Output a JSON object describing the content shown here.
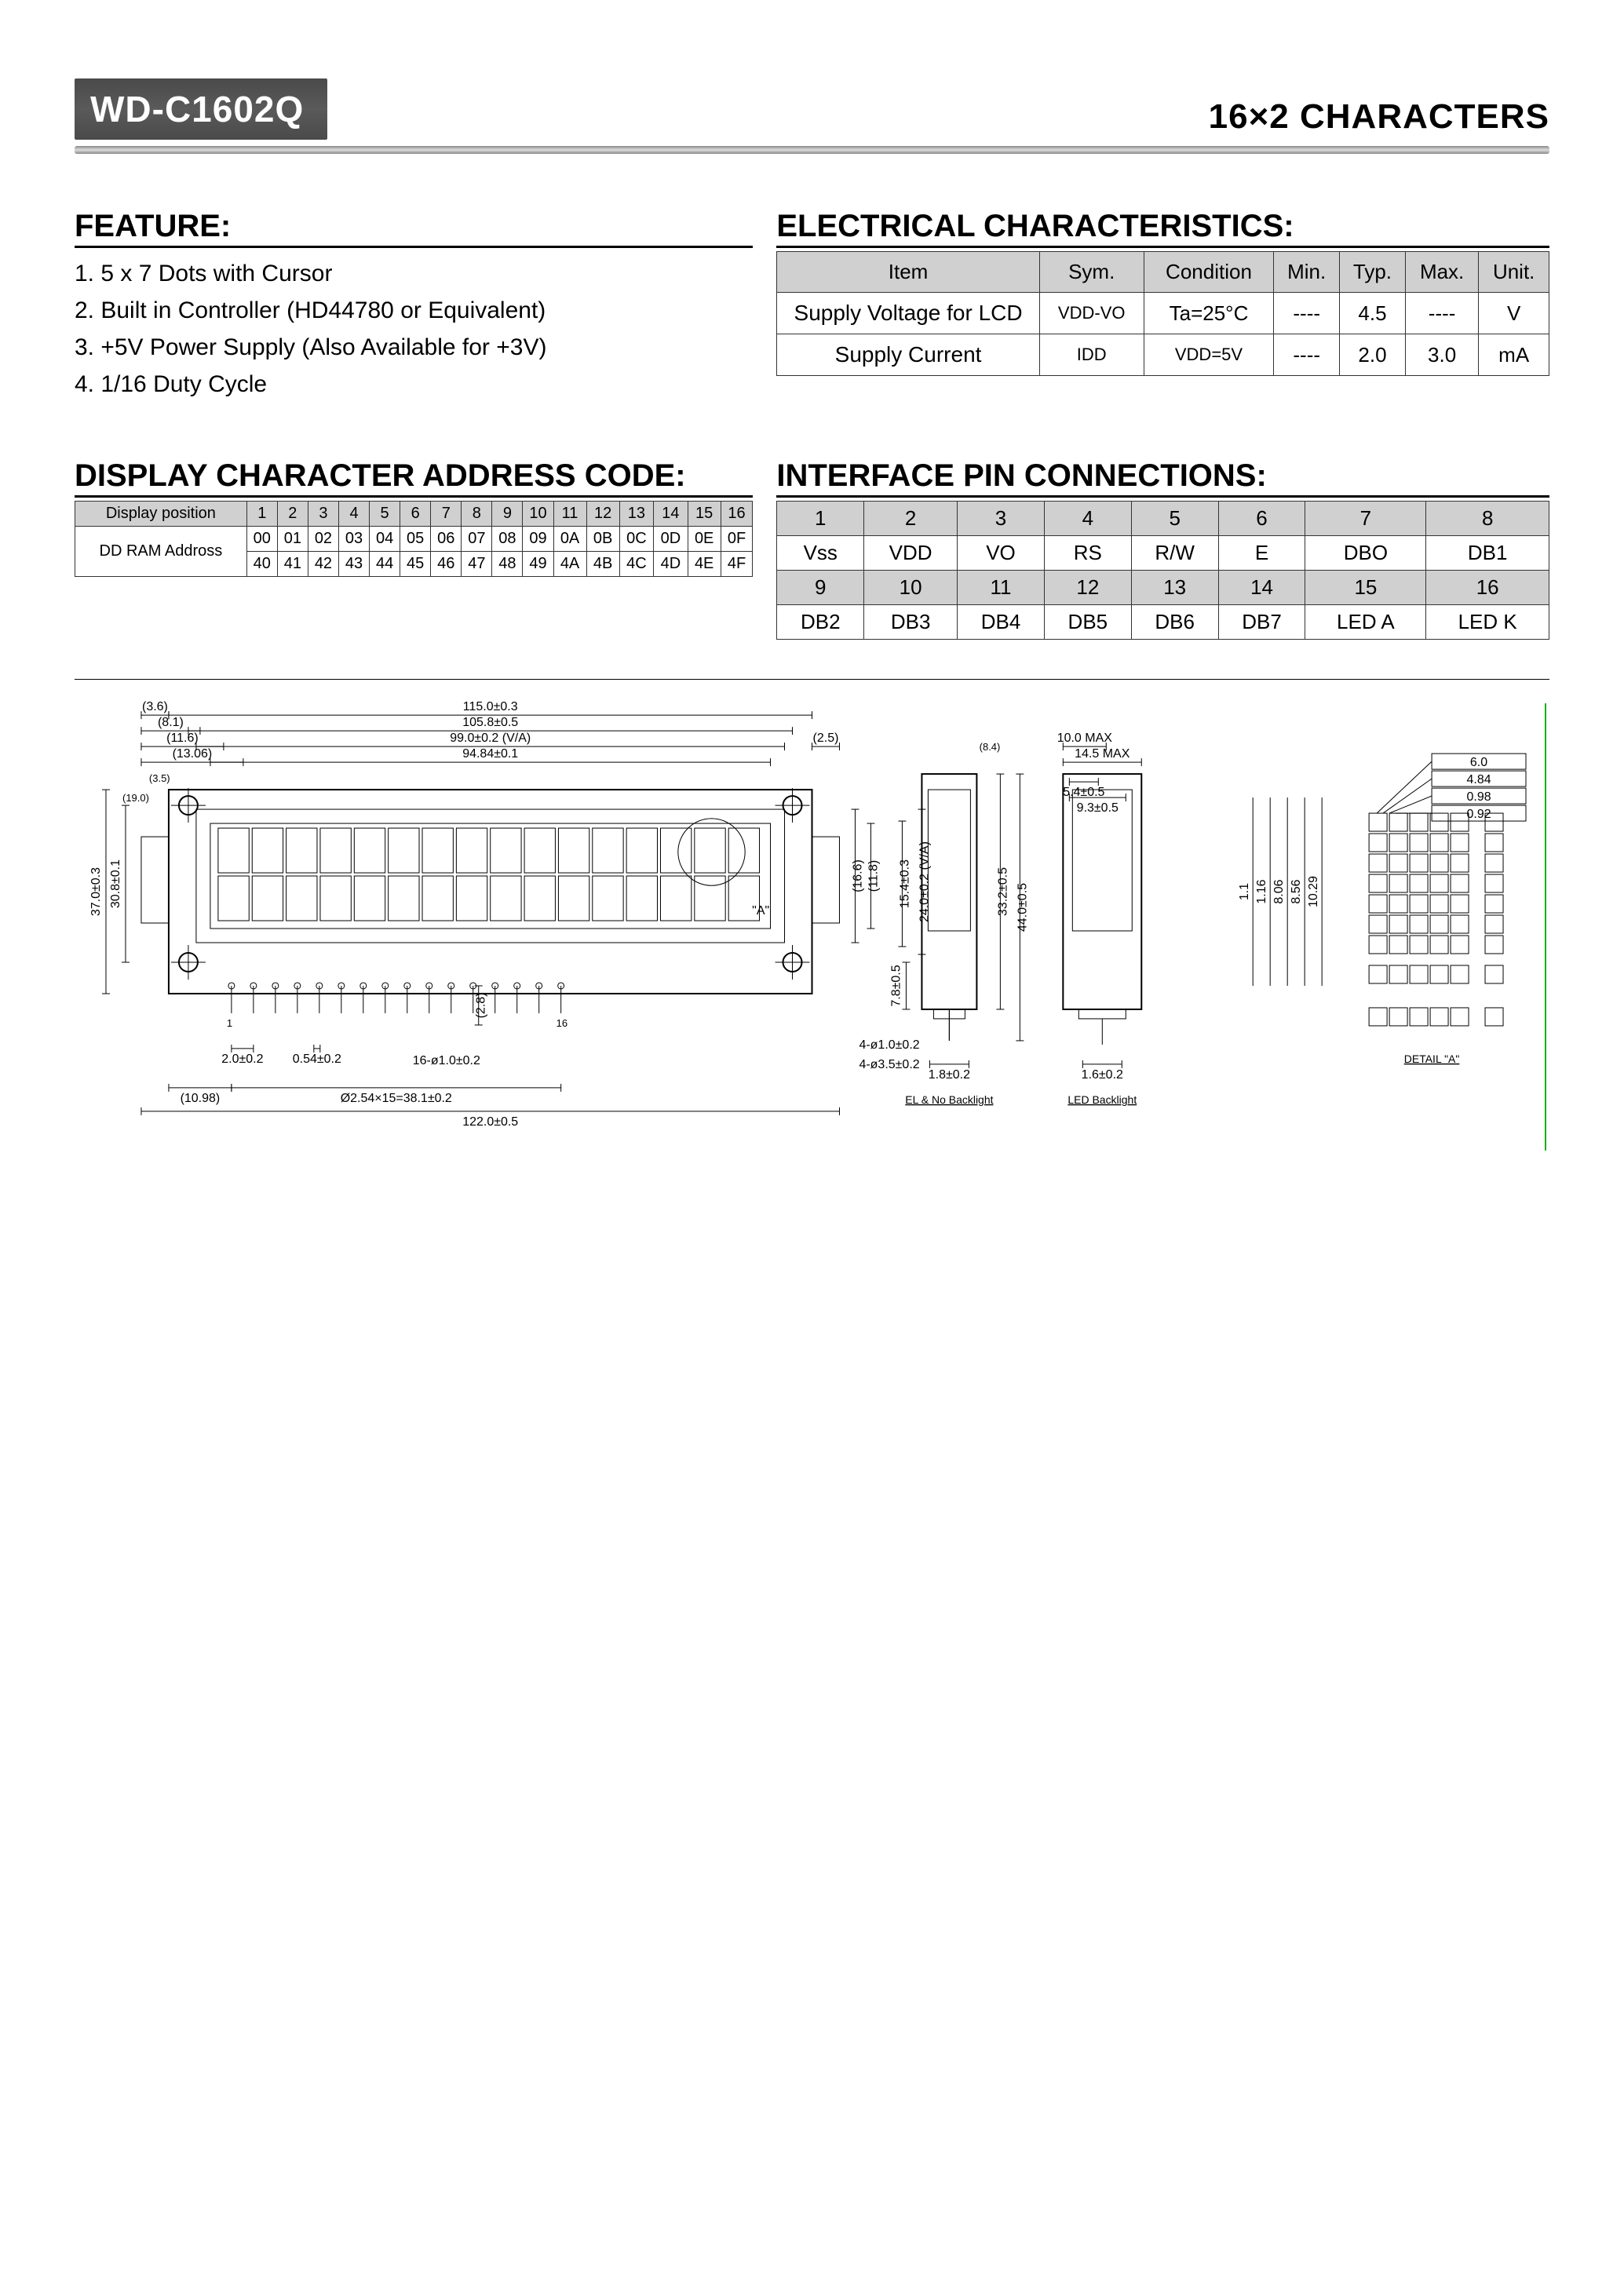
{
  "header": {
    "part_number": "WD-C1602Q",
    "right_label": "16×2  CHARACTERS"
  },
  "features": {
    "title": "FEATURE:",
    "items": [
      "1. 5 x 7 Dots with Cursor",
      "2. Built in Controller (HD44780 or Equivalent)",
      "3. +5V Power Supply (Also Available for +3V)",
      "4. 1/16 Duty Cycle"
    ]
  },
  "electrical": {
    "title": "ELECTRICAL CHARACTERISTICS:",
    "columns": [
      "Item",
      "Sym.",
      "Condition",
      "Min.",
      "Typ.",
      "Max.",
      "Unit."
    ],
    "rows": [
      {
        "item": "Supply Voltage for LCD",
        "sym": "VDD-VO",
        "cond": "Ta=25°C",
        "min": "----",
        "typ": "4.5",
        "max": "----",
        "unit": "V"
      },
      {
        "item": "Supply Current",
        "sym": "IDD",
        "cond": "VDD=5V",
        "min": "----",
        "typ": "2.0",
        "max": "3.0",
        "unit": "mA"
      }
    ]
  },
  "address": {
    "title": "DISPLAY CHARACTER ADDRESS CODE:",
    "position_label": "Display position",
    "ram_label": "DD RAM Addross",
    "positions": [
      "1",
      "2",
      "3",
      "4",
      "5",
      "6",
      "7",
      "8",
      "9",
      "10",
      "11",
      "12",
      "13",
      "14",
      "15",
      "16"
    ],
    "row1": [
      "00",
      "01",
      "02",
      "03",
      "04",
      "05",
      "06",
      "07",
      "08",
      "09",
      "0A",
      "0B",
      "0C",
      "0D",
      "0E",
      "0F"
    ],
    "row2": [
      "40",
      "41",
      "42",
      "43",
      "44",
      "45",
      "46",
      "47",
      "48",
      "49",
      "4A",
      "4B",
      "4C",
      "4D",
      "4E",
      "4F"
    ]
  },
  "pins": {
    "title": "INTERFACE PIN CONNECTIONS:",
    "nums1": [
      "1",
      "2",
      "3",
      "4",
      "5",
      "6",
      "7",
      "8"
    ],
    "labels1": [
      "Vss",
      "VDD",
      "VO",
      "RS",
      "R/W",
      "E",
      "DBO",
      "DB1"
    ],
    "nums2": [
      "9",
      "10",
      "11",
      "12",
      "13",
      "14",
      "15",
      "16"
    ],
    "labels2": [
      "DB2",
      "DB3",
      "DB4",
      "DB5",
      "DB6",
      "DB7",
      "LED A",
      "LED K"
    ]
  },
  "diagram": {
    "front": {
      "dim_top1": "(3.6)",
      "dim_top2": "(8.1)",
      "dim_top3": "(11.6)",
      "dim_top4": "(13.06)",
      "dim_overall_w": "115.0±0.3",
      "dim_mount_w": "105.8±0.5",
      "dim_bezel_w": "99.0±0.2 (V/A)",
      "dim_va_w": "94.84±0.1",
      "dim_left_tab": "(3.5)",
      "dim_tab_h": "(19.0)",
      "dim_overall_h": "37.0±0.3",
      "dim_mount_h": "30.8±0.1",
      "dim_right_tab": "(2.5)",
      "dim_right_tab2": "(8.4)",
      "dim_inner_h1": "(16.6)",
      "dim_inner_h2": "(11.8)",
      "dim_view_h": "15.4±0.3",
      "dim_va_h": "24.0±0.2 (V/A)",
      "dim_r_area_h": "33.2±0.5",
      "dim_r_body_h": "44.0±0.5",
      "dim_body_h": "7.8±0.5",
      "pin_pitch": "2.0±0.2",
      "pin_dia": "0.54±0.2",
      "pin_row": "16-ø1.0±0.2",
      "pin_row_h": "(2.8)",
      "pin_numbers_left": "1",
      "pin_numbers_right": "16",
      "mech_note1": "4-ø1.0±0.2",
      "mech_note2": "4-ø3.5±0.2",
      "dim_bot_lead": "(10.98)",
      "dim_bot_span": "Ø2.54×15=38.1±0.2",
      "dim_bot_overall": "122.0±0.5",
      "detail_ref": "\"A\""
    },
    "side_el": {
      "label": "EL & No Backlight",
      "thickness": "1.8±0.2"
    },
    "side_led": {
      "label": "LED Backlight",
      "thickness": "1.6±0.2",
      "top_a": "10.0 MAX",
      "top_b": "14.5 MAX",
      "dim_a": "5.4±0.5",
      "dim_b": "9.3±0.5"
    },
    "detail": {
      "label": "DETAIL \"A\"",
      "w1": "6.0",
      "w2": "4.84",
      "w3": "0.98",
      "w4": "0.92",
      "h_stack": [
        "10.29",
        "8.56",
        "8.06",
        "1.16",
        "1.1"
      ],
      "dot_cols": 5,
      "dot_rows": 8,
      "cursor_dots": 5
    },
    "colors": {
      "line": "#000000",
      "lcd_fill": "#c8c8c8",
      "lcd_outer": "#dcdcdc",
      "guide": "#10b010",
      "bg": "#ffffff"
    }
  }
}
